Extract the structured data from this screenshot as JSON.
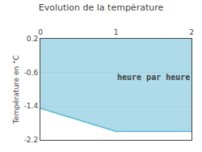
{
  "chart_data": {
    "type": "area",
    "title": "Evolution de la température",
    "y_label": "Température en °C",
    "x": [
      0,
      1,
      2
    ],
    "values": [
      -1.45,
      -2.0,
      -2.0
    ],
    "fill_top": 0.2,
    "color": "#5bb8d4",
    "xlim": [
      0,
      2
    ],
    "xticks": [
      0,
      1,
      2
    ],
    "ylim": [
      -2.2,
      0.2
    ],
    "yticks": [
      0.2,
      -0.6,
      -1.4,
      -2.2
    ],
    "grid": "y",
    "annotations": [
      {
        "text": "heure par heure",
        "x": 1.5,
        "y": -0.72
      }
    ]
  }
}
